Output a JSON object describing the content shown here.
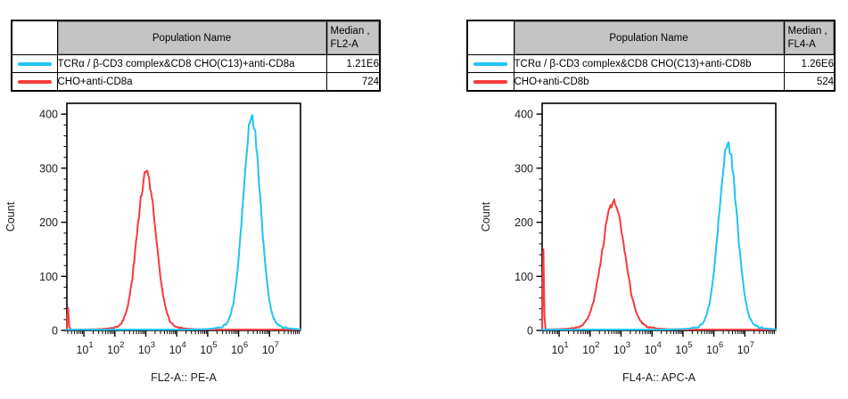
{
  "colors": {
    "cyan": "#1FC3F3",
    "red": "#F93A3C",
    "table_header_bg": "#C4C4C4",
    "axis": "#000000"
  },
  "panels": [
    {
      "table": {
        "swatch_header": "",
        "col_population": "Population Name",
        "col_median_line1": "Median ,",
        "col_median_line2": "FL2-A",
        "rows": [
          {
            "swatch": "cyan",
            "name": "TCRα / β-CD3 complex&CD8 CHO(C13)+anti-CD8a",
            "median": "1.21E6"
          },
          {
            "swatch": "red",
            "name": "CHO+anti-CD8a",
            "median": "724"
          }
        ]
      }
    },
    {
      "table": {
        "swatch_header": "",
        "col_population": "Population Name",
        "col_median_line1": "Median ,",
        "col_median_line2": "FL4-A",
        "rows": [
          {
            "swatch": "cyan",
            "name": "TCRα / β-CD3 complex&CD8 CHO(C13)+anti-CD8b",
            "median": "1.26E6"
          },
          {
            "swatch": "red",
            "name": "CHO+anti-CD8b",
            "median": "524"
          }
        ]
      }
    }
  ],
  "chart_data": [
    {
      "type": "line",
      "subtype": "flow-cytometry-histogram-overlay",
      "title": "",
      "xlabel": "FL2-A:: PE-A",
      "ylabel": "Count",
      "x_scale": "log10",
      "x_range_log10": [
        0.45,
        8.0
      ],
      "x_major_ticks_log10": [
        1,
        2,
        3,
        4,
        5,
        6,
        7
      ],
      "ylim": [
        0,
        420
      ],
      "yticks": [
        0,
        100,
        200,
        300,
        400
      ],
      "y_minor_step": 20,
      "grid": false,
      "legend": "table-above",
      "series": [
        {
          "name": "CHO+anti-CD8a",
          "color_key": "red",
          "median_stat": "724",
          "peak_center_log10": 3.02,
          "peak_height_count": 280,
          "peak_sigma_log10": 0.3,
          "left_edge_spike_count": 42,
          "baseline_count": 1.5
        },
        {
          "name": "TCRα / β-CD3 complex&CD8 CHO(C13)+anti-CD8a",
          "color_key": "cyan",
          "median_stat": "1.21E6",
          "peak_center_log10": 6.42,
          "peak_height_count": 378,
          "peak_sigma_log10": 0.28,
          "left_edge_spike_count": 0,
          "baseline_count": 1.5
        }
      ]
    },
    {
      "type": "line",
      "subtype": "flow-cytometry-histogram-overlay",
      "title": "",
      "xlabel": "FL4-A:: APC-A",
      "ylabel": "Count",
      "x_scale": "log10",
      "x_range_log10": [
        0.45,
        8.0
      ],
      "x_major_ticks_log10": [
        1,
        2,
        3,
        4,
        5,
        6,
        7
      ],
      "ylim": [
        0,
        420
      ],
      "yticks": [
        0,
        100,
        200,
        300,
        400
      ],
      "y_minor_step": 20,
      "grid": false,
      "legend": "table-above",
      "series": [
        {
          "name": "CHO+anti-CD8b",
          "color_key": "red",
          "median_stat": "524",
          "peak_center_log10": 2.75,
          "peak_height_count": 228,
          "peak_sigma_log10": 0.36,
          "left_edge_spike_count": 150,
          "baseline_count": 1.5
        },
        {
          "name": "TCRα / β-CD3 complex&CD8 CHO(C13)+anti-CD8b",
          "color_key": "cyan",
          "median_stat": "1.26E6",
          "peak_center_log10": 6.45,
          "peak_height_count": 330,
          "peak_sigma_log10": 0.29,
          "left_edge_spike_count": 0,
          "baseline_count": 1.5
        }
      ]
    }
  ]
}
